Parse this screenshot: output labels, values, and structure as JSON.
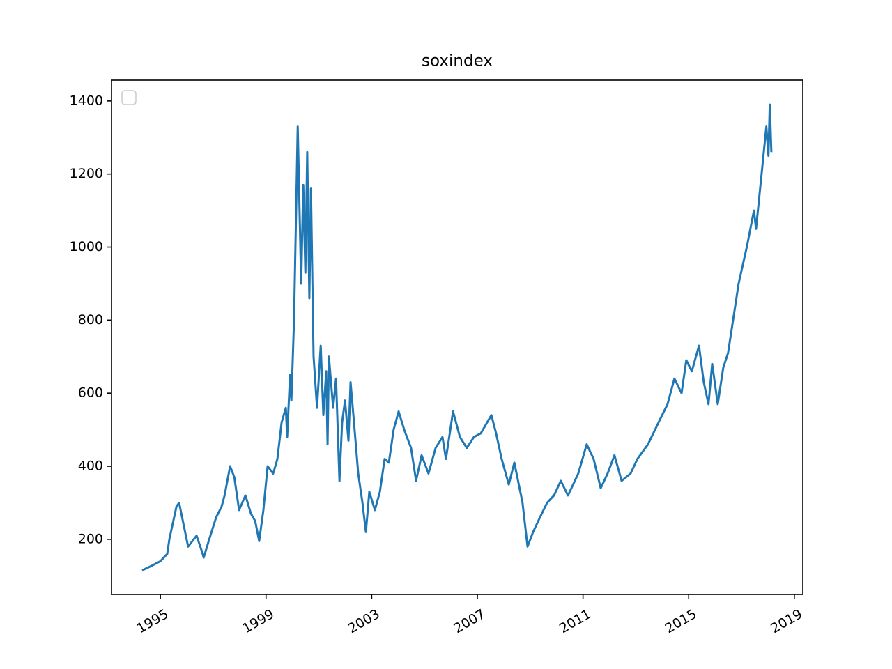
{
  "chart_data": {
    "type": "line",
    "title": "soxindex",
    "x": [
      1994.31,
      1994.6,
      1995.0,
      1995.26,
      1995.34,
      1995.61,
      1995.71,
      1996.05,
      1996.37,
      1996.58,
      1996.64,
      1996.85,
      1997.11,
      1997.32,
      1997.43,
      1997.64,
      1997.8,
      1997.98,
      1998.22,
      1998.43,
      1998.59,
      1998.74,
      1998.9,
      1999.06,
      1999.27,
      1999.43,
      1999.59,
      1999.75,
      1999.8,
      1999.91,
      1999.96,
      2000.06,
      2000.2,
      2000.33,
      2000.41,
      2000.49,
      2000.56,
      2000.64,
      2000.7,
      2000.8,
      2000.93,
      2001.07,
      2001.17,
      2001.28,
      2001.33,
      2001.38,
      2001.54,
      2001.65,
      2001.78,
      2001.88,
      2001.99,
      2002.12,
      2002.2,
      2002.33,
      2002.49,
      2002.65,
      2002.78,
      2002.91,
      2003.12,
      2003.31,
      2003.49,
      2003.65,
      2003.83,
      2004.02,
      2004.23,
      2004.49,
      2004.68,
      2004.89,
      2005.15,
      2005.42,
      2005.68,
      2005.81,
      2006.08,
      2006.34,
      2006.6,
      2006.87,
      2007.13,
      2007.53,
      2007.71,
      2007.92,
      2008.19,
      2008.4,
      2008.71,
      2008.9,
      2009.11,
      2009.37,
      2009.64,
      2009.9,
      2010.16,
      2010.43,
      2010.82,
      2011.14,
      2011.4,
      2011.67,
      2011.93,
      2012.19,
      2012.46,
      2012.8,
      2013.06,
      2013.46,
      2013.86,
      2014.2,
      2014.46,
      2014.73,
      2014.91,
      2015.12,
      2015.39,
      2015.57,
      2015.75,
      2015.89,
      2016.1,
      2016.31,
      2016.49,
      2016.68,
      2016.89,
      2017.2,
      2017.47,
      2017.55,
      2017.76,
      2017.94,
      2018.02,
      2018.07,
      2018.13
    ],
    "series": [
      {
        "color": "#1f77b4",
        "values": [
          115,
          125,
          140,
          160,
          200,
          290,
          300,
          180,
          210,
          165,
          150,
          200,
          260,
          290,
          320,
          400,
          370,
          280,
          320,
          270,
          250,
          195,
          280,
          400,
          380,
          420,
          520,
          560,
          480,
          650,
          580,
          800,
          1330,
          900,
          1170,
          930,
          1260,
          860,
          1160,
          700,
          560,
          730,
          540,
          660,
          460,
          700,
          560,
          640,
          360,
          520,
          580,
          470,
          630,
          520,
          380,
          300,
          220,
          330,
          280,
          330,
          420,
          410,
          500,
          550,
          500,
          450,
          360,
          430,
          380,
          450,
          480,
          420,
          550,
          480,
          450,
          480,
          490,
          540,
          490,
          420,
          350,
          410,
          300,
          180,
          220,
          260,
          300,
          320,
          360,
          320,
          380,
          460,
          420,
          340,
          380,
          430,
          360,
          380,
          420,
          460,
          520,
          570,
          640,
          600,
          690,
          660,
          730,
          630,
          570,
          680,
          570,
          670,
          710,
          800,
          900,
          1000,
          1100,
          1050,
          1200,
          1330,
          1250,
          1390,
          1260
        ]
      }
    ],
    "xlim": [
      1993.15,
      2019.32
    ],
    "xticks": [
      1995,
      1999,
      2003,
      2007,
      2011,
      2015,
      2019
    ],
    "ylim": [
      49,
      1457
    ],
    "yticks": [
      200,
      400,
      600,
      800,
      1000,
      1200,
      1400
    ],
    "legend": "upper left"
  }
}
